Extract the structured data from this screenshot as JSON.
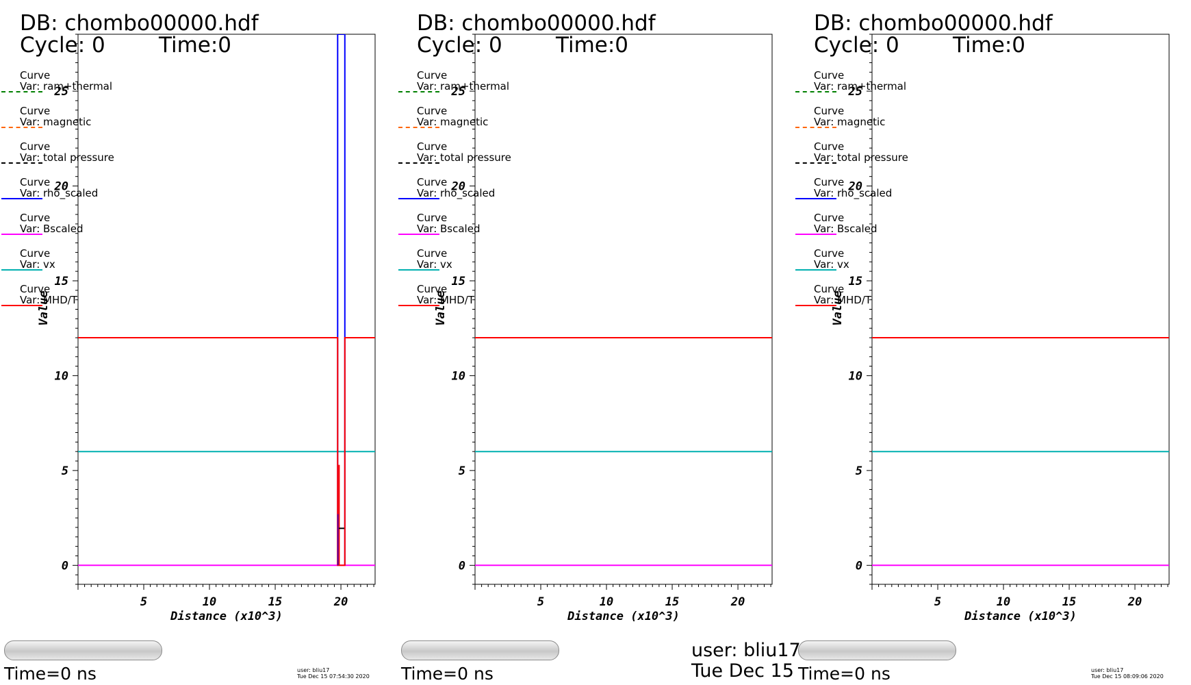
{
  "chart_data": [
    {
      "type": "line",
      "database": "DB: chombo00000.hdf",
      "cycle": "Cycle: 0",
      "time": "Time:0",
      "xlabel": "Distance (x10^3)",
      "ylabel": "Value",
      "xlim": [
        0,
        22.6
      ],
      "ylim": [
        -1,
        28
      ],
      "x_ticks": [
        5,
        10,
        15,
        20
      ],
      "y_ticks": [
        0,
        5,
        10,
        15,
        20,
        25
      ],
      "grid": false,
      "legend": "top-left",
      "legend_items": [
        {
          "curve": "Curve",
          "var": "Var: ram+thermal",
          "color": "#008000",
          "dash": "dashed"
        },
        {
          "curve": "Curve",
          "var": "Var: magnetic",
          "color": "#ff6600",
          "dash": "dashed"
        },
        {
          "curve": "Curve",
          "var": "Var: total pressure",
          "color": "#000000",
          "dash": "dashed"
        },
        {
          "curve": "Curve",
          "var": "Var: rho_scaled",
          "color": "#0000ff",
          "dash": "solid"
        },
        {
          "curve": "Curve",
          "var": "Var: Bscaled",
          "color": "#ff00ff",
          "dash": "solid"
        },
        {
          "curve": "Curve",
          "var": "Var: vx",
          "color": "#00b0b0",
          "dash": "solid"
        },
        {
          "curve": "Curve",
          "var": "Var: MHD/T",
          "color": "#ff0000",
          "dash": "solid"
        }
      ],
      "series": [
        {
          "color": "#00b0b0",
          "dash": "solid",
          "x": [
            0,
            22.6
          ],
          "y": [
            6,
            6
          ]
        },
        {
          "color": "#ff00ff",
          "dash": "solid",
          "x": [
            0,
            22.6
          ],
          "y": [
            0,
            0
          ]
        },
        {
          "color": "#0000ff",
          "dash": "solid",
          "x": [
            19.75,
            19.75,
            20.3,
            20.3
          ],
          "y": [
            0,
            28,
            28,
            0
          ]
        },
        {
          "color": "#ff0000",
          "dash": "solid",
          "x": [
            0,
            19.75,
            19.75,
            20.3,
            20.3,
            22.6
          ],
          "y": [
            12,
            12,
            0,
            0,
            12,
            12
          ]
        },
        {
          "color": "#0000ff",
          "dash": "solid",
          "x": [
            19.8,
            19.8
          ],
          "y": [
            0,
            2.7
          ]
        },
        {
          "color": "#ff0000",
          "dash": "solid",
          "x": [
            19.86,
            19.86
          ],
          "y": [
            0,
            5.3
          ]
        },
        {
          "color": "#000000",
          "dash": "solid",
          "x": [
            19.84,
            20.25
          ],
          "y": [
            1.95,
            1.95
          ]
        }
      ],
      "time_label": "Time=0 ns",
      "user_label": "user: bliu17",
      "date_label": "Tue Dec 15 07:54:30 2020"
    },
    {
      "type": "line",
      "database": "DB: chombo00000.hdf",
      "cycle": "Cycle: 0",
      "time": "Time:0",
      "xlabel": "Distance (x10^3)",
      "ylabel": "Value",
      "xlim": [
        0,
        22.6
      ],
      "ylim": [
        -1,
        28
      ],
      "x_ticks": [
        5,
        10,
        15,
        20
      ],
      "y_ticks": [
        0,
        5,
        10,
        15,
        20,
        25
      ],
      "grid": false,
      "legend": "top-left",
      "legend_items": [
        {
          "curve": "Curve",
          "var": "Var: ram+thermal",
          "color": "#008000",
          "dash": "dashed"
        },
        {
          "curve": "Curve",
          "var": "Var: magnetic",
          "color": "#ff6600",
          "dash": "dashed"
        },
        {
          "curve": "Curve",
          "var": "Var: total pressure",
          "color": "#000000",
          "dash": "dashed"
        },
        {
          "curve": "Curve",
          "var": "Var: rho_scaled",
          "color": "#0000ff",
          "dash": "solid"
        },
        {
          "curve": "Curve",
          "var": "Var: Bscaled",
          "color": "#ff00ff",
          "dash": "solid"
        },
        {
          "curve": "Curve",
          "var": "Var: vx",
          "color": "#00b0b0",
          "dash": "solid"
        },
        {
          "curve": "Curve",
          "var": "Var: MHD/T",
          "color": "#ff0000",
          "dash": "solid"
        }
      ],
      "series": [
        {
          "color": "#ff0000",
          "dash": "solid",
          "x": [
            0,
            22.6
          ],
          "y": [
            12,
            12
          ]
        },
        {
          "color": "#00b0b0",
          "dash": "solid",
          "x": [
            0,
            22.6
          ],
          "y": [
            6,
            6
          ]
        },
        {
          "color": "#ff00ff",
          "dash": "solid",
          "x": [
            0,
            22.6
          ],
          "y": [
            0,
            0
          ]
        }
      ],
      "time_label": "Time=0 ns",
      "user_label": "user: bliu17",
      "date_label": "Tue Dec 15"
    },
    {
      "type": "line",
      "database": "DB: chombo00000.hdf",
      "cycle": "Cycle: 0",
      "time": "Time:0",
      "xlabel": "Distance (x10^3)",
      "ylabel": "Value",
      "xlim": [
        0,
        22.6
      ],
      "ylim": [
        -1,
        28
      ],
      "x_ticks": [
        5,
        10,
        15,
        20
      ],
      "y_ticks": [
        0,
        5,
        10,
        15,
        20,
        25
      ],
      "grid": false,
      "legend": "top-left",
      "legend_items": [
        {
          "curve": "Curve",
          "var": "Var: ram+thermal",
          "color": "#008000",
          "dash": "dashed"
        },
        {
          "curve": "Curve",
          "var": "Var: magnetic",
          "color": "#ff6600",
          "dash": "dashed"
        },
        {
          "curve": "Curve",
          "var": "Var: total pressure",
          "color": "#000000",
          "dash": "dashed"
        },
        {
          "curve": "Curve",
          "var": "Var: rho_scaled",
          "color": "#0000ff",
          "dash": "solid"
        },
        {
          "curve": "Curve",
          "var": "Var: Bscaled",
          "color": "#ff00ff",
          "dash": "solid"
        },
        {
          "curve": "Curve",
          "var": "Var: vx",
          "color": "#00b0b0",
          "dash": "solid"
        },
        {
          "curve": "Curve",
          "var": "Var: MHD/T",
          "color": "#ff0000",
          "dash": "solid"
        }
      ],
      "series": [
        {
          "color": "#ff0000",
          "dash": "solid",
          "x": [
            0,
            22.6
          ],
          "y": [
            12,
            12
          ]
        },
        {
          "color": "#00b0b0",
          "dash": "solid",
          "x": [
            0,
            22.6
          ],
          "y": [
            6,
            6
          ]
        },
        {
          "color": "#ff00ff",
          "dash": "solid",
          "x": [
            0,
            22.6
          ],
          "y": [
            0,
            0
          ]
        }
      ],
      "time_label": "Time=0 ns",
      "user_label": "user: bliu17",
      "date_label": "Tue Dec 15 08:09:06 2020"
    }
  ]
}
